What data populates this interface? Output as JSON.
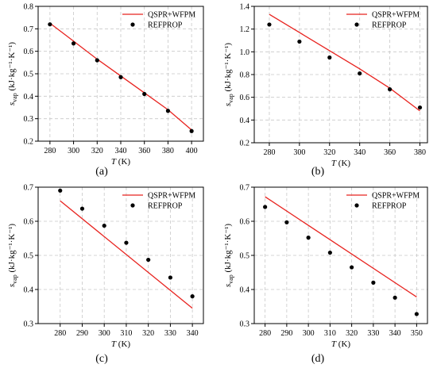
{
  "colors": {
    "model_line": "#e8231f",
    "points": "#000000",
    "grid": "#c8c8c8",
    "axis": "#000000"
  },
  "chart_data": [
    {
      "type": "line",
      "caption": "(a)",
      "xlabel_var": "T",
      "xlabel_unit": " (K)",
      "ylabel_base": "s",
      "ylabel_sub": "vap",
      "ylabel_unit": " (kJ·kg⁻¹·K⁻¹)",
      "xlim": [
        270,
        410
      ],
      "ylim": [
        0.2,
        0.8
      ],
      "xticks": [
        280,
        300,
        320,
        340,
        360,
        380,
        400
      ],
      "yticks": [
        0.2,
        0.3,
        0.4,
        0.5,
        0.6,
        0.7,
        0.8
      ],
      "xticklabels": [
        "280",
        "300",
        "320",
        "340",
        "360",
        "380",
        "400"
      ],
      "yticklabels": [
        "0.2",
        "0.3",
        "0.4",
        "0.5",
        "0.6",
        "0.7",
        "0.8"
      ],
      "grid": true,
      "legend_placement": "top-right",
      "series": [
        {
          "name": "QSPR+WFPM",
          "kind": "line",
          "x": [
            280,
            300,
            320,
            340,
            360,
            380,
            400
          ],
          "y": [
            0.725,
            0.645,
            0.565,
            0.49,
            0.415,
            0.34,
            0.25
          ]
        },
        {
          "name": "REFPROP",
          "kind": "scatter",
          "x": [
            280,
            300,
            320,
            340,
            360,
            380,
            400
          ],
          "y": [
            0.72,
            0.635,
            0.56,
            0.485,
            0.41,
            0.335,
            0.245
          ]
        }
      ]
    },
    {
      "type": "line",
      "caption": "(b)",
      "xlabel_var": "T",
      "xlabel_unit": " (K)",
      "ylabel_base": "s",
      "ylabel_sub": "vap",
      "ylabel_unit": " (kJ·kg⁻¹·K⁻¹)",
      "xlim": [
        270,
        385
      ],
      "ylim": [
        0.2,
        1.4
      ],
      "xticks": [
        280,
        300,
        320,
        340,
        360,
        380
      ],
      "yticks": [
        0.2,
        0.4,
        0.6,
        0.8,
        1.0,
        1.2,
        1.4
      ],
      "xticklabels": [
        "280",
        "300",
        "320",
        "340",
        "360",
        "380"
      ],
      "yticklabels": [
        "0.2",
        "0.4",
        "0.6",
        "0.8",
        "1.0",
        "1.2",
        "1.4"
      ],
      "grid": true,
      "legend_placement": "top-right",
      "series": [
        {
          "name": "QSPR+WFPM",
          "kind": "line",
          "x": [
            280,
            300,
            320,
            340,
            360,
            380
          ],
          "y": [
            1.33,
            1.17,
            1.01,
            0.85,
            0.68,
            0.48
          ]
        },
        {
          "name": "REFPROP",
          "kind": "scatter",
          "x": [
            280,
            300,
            320,
            340,
            360,
            380
          ],
          "y": [
            1.24,
            1.09,
            0.95,
            0.81,
            0.67,
            0.51
          ]
        }
      ]
    },
    {
      "type": "line",
      "caption": "(c)",
      "xlabel_var": "T",
      "xlabel_unit": " (K)",
      "ylabel_base": "s",
      "ylabel_sub": "vap",
      "ylabel_unit": " (kJ·kg⁻¹·K⁻¹)",
      "xlim": [
        270,
        345
      ],
      "ylim": [
        0.3,
        0.7
      ],
      "xticks": [
        280,
        290,
        300,
        310,
        320,
        330,
        340
      ],
      "yticks": [
        0.3,
        0.4,
        0.5,
        0.6,
        0.7
      ],
      "xticklabels": [
        "280",
        "290",
        "300",
        "310",
        "320",
        "330",
        "340"
      ],
      "yticklabels": [
        "0.3",
        "0.4",
        "0.5",
        "0.6",
        "0.7"
      ],
      "grid": true,
      "legend_placement": "top-right",
      "series": [
        {
          "name": "QSPR+WFPM",
          "kind": "line",
          "x": [
            280,
            340
          ],
          "y": [
            0.66,
            0.345
          ]
        },
        {
          "name": "REFPROP",
          "kind": "scatter",
          "x": [
            280,
            290,
            300,
            310,
            320,
            330,
            340
          ],
          "y": [
            0.69,
            0.637,
            0.587,
            0.537,
            0.487,
            0.435,
            0.38
          ]
        }
      ]
    },
    {
      "type": "line",
      "caption": "(d)",
      "xlabel_var": "T",
      "xlabel_unit": " (K)",
      "ylabel_base": "s",
      "ylabel_sub": "vap",
      "ylabel_unit": " (kJ·kg⁻¹·K⁻¹)",
      "xlim": [
        275,
        355
      ],
      "ylim": [
        0.3,
        0.7
      ],
      "xticks": [
        280,
        290,
        300,
        310,
        320,
        330,
        340,
        350
      ],
      "yticks": [
        0.3,
        0.4,
        0.5,
        0.6,
        0.7
      ],
      "xticklabels": [
        "280",
        "290",
        "300",
        "310",
        "320",
        "330",
        "340",
        "350"
      ],
      "yticklabels": [
        "0.3",
        "0.4",
        "0.5",
        "0.6",
        "0.7"
      ],
      "grid": true,
      "legend_placement": "top-right",
      "series": [
        {
          "name": "QSPR+WFPM",
          "kind": "line",
          "x": [
            280,
            350
          ],
          "y": [
            0.672,
            0.378
          ]
        },
        {
          "name": "REFPROP",
          "kind": "scatter",
          "x": [
            280,
            290,
            300,
            310,
            320,
            330,
            340,
            350
          ],
          "y": [
            0.642,
            0.597,
            0.552,
            0.508,
            0.465,
            0.42,
            0.376,
            0.328
          ]
        }
      ]
    }
  ]
}
